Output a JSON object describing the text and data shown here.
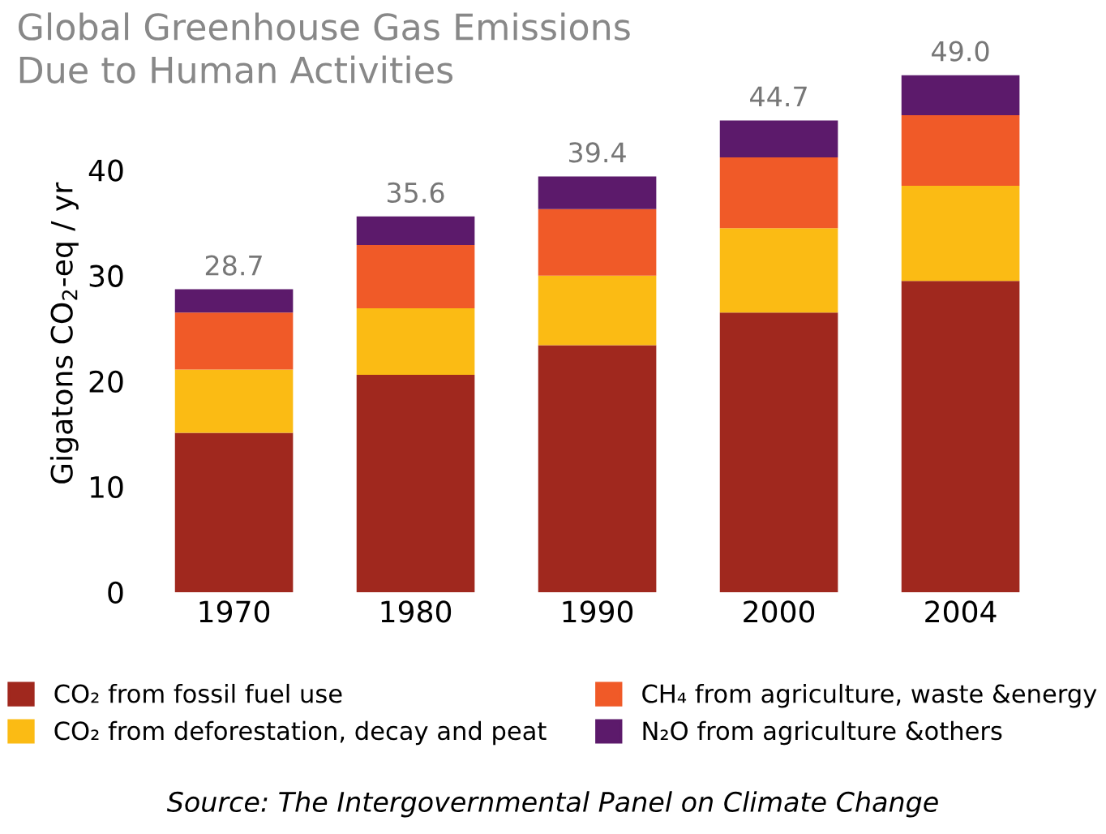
{
  "chart_data": {
    "type": "bar",
    "title": "Global Greenhouse Gas Emissions\nDue to Human Activities",
    "ylabel": "Gigatons CO$_{2}$-eq / yr",
    "categories": [
      "1970",
      "1980",
      "1990",
      "2000",
      "2004"
    ],
    "stacked": true,
    "series": [
      {
        "name": "CO₂ from fossil fuel use",
        "color": "#a0281e",
        "values": [
          15.1,
          20.6,
          23.4,
          26.5,
          29.5
        ]
      },
      {
        "name": "CO₂ from deforestation, decay and peat",
        "color": "#fbbb14",
        "values": [
          6.0,
          6.3,
          6.6,
          8.0,
          9.0
        ]
      },
      {
        "name": "CH₄ from agriculture, waste &energy",
        "color": "#f05a28",
        "values": [
          5.4,
          6.0,
          6.3,
          6.7,
          6.7
        ]
      },
      {
        "name": "N₂O from agriculture &others",
        "color": "#5c1a6b",
        "values": [
          2.2,
          2.7,
          3.1,
          3.5,
          3.8
        ]
      }
    ],
    "totals": [
      "28.7",
      "35.6",
      "39.4",
      "44.7",
      "49.0"
    ],
    "ylim": [
      0,
      49
    ],
    "yticks": [
      0,
      10,
      20,
      30,
      40
    ],
    "grid": false,
    "legend": "bottom",
    "annotations": [
      "Source: The Intergovernmental Panel on Climate Change"
    ]
  }
}
